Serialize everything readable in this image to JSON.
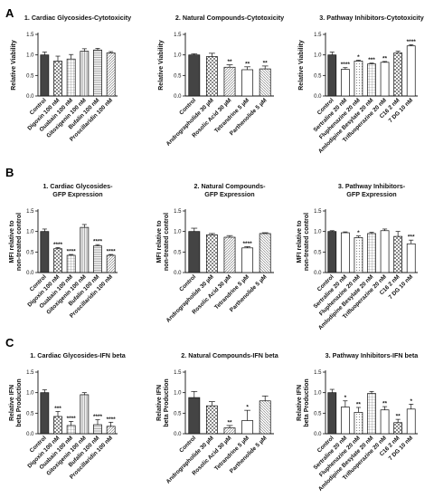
{
  "panels": [
    {
      "label": "A"
    },
    {
      "label": "B"
    },
    {
      "label": "C"
    }
  ],
  "chart_data": [
    {
      "type": "bar",
      "title": "1. Cardiac Glycosides-Cytotoxicity",
      "ylabel": "Relative Viability",
      "ylim": [
        0,
        1.5
      ],
      "yticks": [
        0,
        0.5,
        1.0,
        1.5
      ],
      "categories": [
        "Control",
        "Digoxin 100 nM",
        "Ouabain 100 nM",
        "Gitoxigenin 100 nM",
        "Bufalin 100 nM",
        "Proscillaridin 100 nM"
      ],
      "values": [
        1.0,
        0.85,
        0.9,
        1.09,
        1.12,
        1.05
      ],
      "errors": [
        0.07,
        0.12,
        0.11,
        0.06,
        0.04,
        0.03
      ],
      "significance": [
        "",
        "",
        "",
        "",
        "",
        ""
      ]
    },
    {
      "type": "bar",
      "title": "2. Natural Compounds-Cytotoxicity",
      "ylabel": "Relative Viability",
      "ylim": [
        0,
        1.5
      ],
      "yticks": [
        0,
        0.5,
        1.0,
        1.5
      ],
      "categories": [
        "Control",
        "Andrographolide 30 µM",
        "Rosolic Acid 30 µM",
        "Tetrandrine 5 µM",
        "Parthenolide 5 µM"
      ],
      "values": [
        1.0,
        0.96,
        0.7,
        0.64,
        0.66
      ],
      "errors": [
        0.03,
        0.08,
        0.06,
        0.07,
        0.07
      ],
      "significance": [
        "",
        "",
        "**",
        "**",
        "**"
      ]
    },
    {
      "type": "bar",
      "title": "3. Pathway Inhibitors-Cytotoxicity",
      "ylabel": "Relative Viability",
      "ylim": [
        0,
        1.5
      ],
      "yticks": [
        0,
        0.5,
        1.0,
        1.5
      ],
      "categories": [
        "Control",
        "Sertraline 20 nM",
        "Fluphenazine 20 nM",
        "Amlodipine Besylate 20 nM",
        "Trifluoperazine 20 nM",
        "C16 2 nM",
        "7 DG 10 nM"
      ],
      "values": [
        1.0,
        0.65,
        0.85,
        0.78,
        0.82,
        1.05,
        1.22
      ],
      "errors": [
        0.07,
        0.04,
        0.02,
        0.02,
        0.02,
        0.04,
        0.03
      ],
      "significance": [
        "",
        "****",
        "*",
        "***",
        "**",
        "",
        "****"
      ]
    },
    {
      "type": "bar",
      "title": "1. Cardiac Glycosides-",
      "subtitle": "GFP Expression",
      "ylabel": "MFI relative to non-treated control",
      "ylim": [
        0,
        1.5
      ],
      "yticks": [
        0,
        0.5,
        1.0,
        1.5
      ],
      "categories": [
        "Control",
        "Digoxin 100 nM",
        "Ouabain 100 nM",
        "Gitoxigenin 100 nM",
        "Bufalin 100 nM",
        "Proscillaridin 100 nM"
      ],
      "values": [
        1.0,
        0.58,
        0.42,
        1.1,
        0.65,
        0.42
      ],
      "errors": [
        0.06,
        0.03,
        0.02,
        0.07,
        0.03,
        0.02
      ],
      "significance": [
        "",
        "****",
        "****",
        "",
        "****",
        "****"
      ]
    },
    {
      "type": "bar",
      "title": "2. Natural Compounds-",
      "subtitle": "GFP Expression",
      "ylabel": "MFI relative to non-treated control",
      "ylim": [
        0,
        1.5
      ],
      "yticks": [
        0,
        0.5,
        1.0,
        1.5
      ],
      "categories": [
        "Control",
        "Andrographolide 30 µM",
        "Rosolic Acid 30 µM",
        "Tetrandrine 5 µM",
        "Parthenolide 5 µM"
      ],
      "values": [
        1.0,
        0.92,
        0.86,
        0.6,
        0.95
      ],
      "errors": [
        0.08,
        0.03,
        0.04,
        0.03,
        0.02
      ],
      "significance": [
        "",
        "",
        "",
        "****",
        ""
      ]
    },
    {
      "type": "bar",
      "title": "3. Pathway Inhibitors-",
      "subtitle": "GFP Expression",
      "ylabel": "MFI relative to non-treated control",
      "ylim": [
        0,
        1.5
      ],
      "yticks": [
        0,
        0.5,
        1.0,
        1.5
      ],
      "categories": [
        "Control",
        "Sertraline 20 nM",
        "Fluphenazine 20 nM",
        "Amlodipine Besylate 20 nM",
        "Trifluoperazine 20 nM",
        "C16 2 nM",
        "7 DG 10 nM"
      ],
      "values": [
        1.0,
        0.97,
        0.85,
        0.95,
        1.02,
        0.88,
        0.7
      ],
      "errors": [
        0.02,
        0.02,
        0.04,
        0.03,
        0.04,
        0.12,
        0.09
      ],
      "significance": [
        "",
        "",
        "*",
        "",
        "",
        "",
        "***"
      ]
    },
    {
      "type": "bar",
      "title": "1. Cardiac Glycosides-IFN beta",
      "ylabel": "Relative IFN beta Production",
      "ylim": [
        0,
        1.5
      ],
      "yticks": [
        0,
        0.5,
        1.0,
        1.5
      ],
      "categories": [
        "Control",
        "Digoxin 100 nM",
        "Ouabain 100 nM",
        "Gitoxigenin 100 nM",
        "Bufalin 100 nM",
        "Proscillaridin 100 nM"
      ],
      "values": [
        1.0,
        0.42,
        0.2,
        0.95,
        0.22,
        0.18
      ],
      "errors": [
        0.07,
        0.12,
        0.1,
        0.05,
        0.12,
        0.1
      ],
      "significance": [
        "",
        "***",
        "****",
        "",
        "****",
        "****"
      ]
    },
    {
      "type": "bar",
      "title": "2. Natural Compounds-IFN beta",
      "ylabel": "Relative IFN beta Production",
      "ylim": [
        0,
        1.5
      ],
      "yticks": [
        0,
        0.5,
        1.0,
        1.5
      ],
      "categories": [
        "Control",
        "Andrographolide 30 µM",
        "Rosolic Acid 30 µM",
        "Tetrandrine 5 µM",
        "Parthenolide 5 µM"
      ],
      "values": [
        0.88,
        0.68,
        0.14,
        0.32,
        0.8
      ],
      "errors": [
        0.15,
        0.1,
        0.06,
        0.25,
        0.12
      ],
      "significance": [
        "",
        "",
        "**",
        "*",
        ""
      ]
    },
    {
      "type": "bar",
      "title": "3. Pathway Inhibitors-IFN beta",
      "ylabel": "Relative IFN beta Production",
      "ylim": [
        0,
        1.5
      ],
      "yticks": [
        0,
        0.5,
        1.0,
        1.5
      ],
      "categories": [
        "Control",
        "Sertraline 20 nM",
        "Fluphenazine 20 nM",
        "Amlodipine Besylate 20 nM",
        "Trifluoperazine 20 nM",
        "C16 2 nM",
        "7 DG 10 nM"
      ],
      "values": [
        1.0,
        0.65,
        0.52,
        0.98,
        0.58,
        0.27,
        0.6
      ],
      "errors": [
        0.08,
        0.15,
        0.12,
        0.05,
        0.08,
        0.08,
        0.12
      ],
      "significance": [
        "",
        "*",
        "**",
        "",
        "**",
        "**",
        "*"
      ]
    }
  ]
}
